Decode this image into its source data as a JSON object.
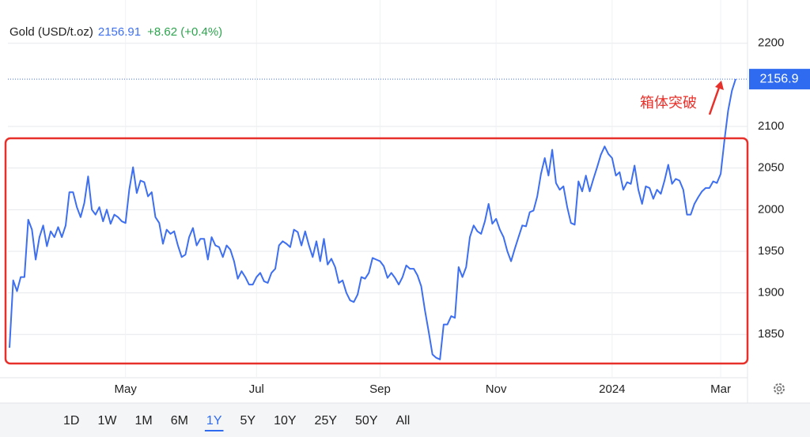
{
  "chart_data": {
    "type": "line",
    "series": [
      {
        "name": "Gold (USD/t.oz)",
        "color": "#3d6ff0",
        "values": [
          1834,
          1915,
          1902,
          1919,
          1919,
          1988,
          1976,
          1940,
          1967,
          1981,
          1956,
          1974,
          1967,
          1979,
          1967,
          1981,
          2021,
          2021,
          2003,
          1991,
          2008,
          2040,
          2000,
          1994,
          2003,
          1986,
          2000,
          1983,
          1994,
          1991,
          1986,
          1984,
          2024,
          2051,
          2020,
          2035,
          2033,
          2016,
          2021,
          1991,
          1984,
          1959,
          1976,
          1971,
          1974,
          1957,
          1943,
          1946,
          1967,
          1978,
          1957,
          1965,
          1965,
          1940,
          1967,
          1957,
          1955,
          1943,
          1957,
          1952,
          1938,
          1917,
          1926,
          1919,
          1910,
          1910,
          1919,
          1924,
          1914,
          1912,
          1924,
          1929,
          1957,
          1962,
          1959,
          1955,
          1976,
          1973,
          1957,
          1974,
          1957,
          1943,
          1962,
          1938,
          1965,
          1934,
          1941,
          1931,
          1912,
          1915,
          1900,
          1891,
          1889,
          1898,
          1919,
          1917,
          1924,
          1942,
          1940,
          1938,
          1932,
          1918,
          1924,
          1918,
          1910,
          1919,
          1933,
          1929,
          1929,
          1921,
          1908,
          1879,
          1853,
          1826,
          1822,
          1820,
          1862,
          1862,
          1872,
          1870,
          1931,
          1919,
          1931,
          1967,
          1981,
          1974,
          1971,
          1986,
          2007,
          1983,
          1989,
          1976,
          1967,
          1950,
          1938,
          1953,
          1967,
          1981,
          1980,
          1997,
          1999,
          2016,
          2043,
          2062,
          2041,
          2072,
          2032,
          2024,
          2028,
          2003,
          1984,
          1982,
          2034,
          2022,
          2041,
          2022,
          2037,
          2051,
          2066,
          2076,
          2067,
          2062,
          2041,
          2045,
          2024,
          2033,
          2031,
          2053,
          2024,
          2007,
          2028,
          2026,
          2013,
          2024,
          2019,
          2035,
          2054,
          2031,
          2037,
          2035,
          2024,
          1994,
          1994,
          2007,
          2015,
          2022,
          2026,
          2026,
          2034,
          2032,
          2043,
          2083,
          2119,
          2143,
          2157
        ]
      }
    ],
    "price": 2156.91,
    "change": "+8.62 (+0.4%)",
    "last_price": 2156.9,
    "annotation": "箱体突破",
    "ylim": [
      1798,
      2252
    ],
    "yticks": [
      1850,
      1900,
      1950,
      2000,
      2050,
      2100,
      2200
    ],
    "xlim": [
      0,
      194
    ],
    "xticks": [
      {
        "value": 31,
        "label": "May"
      },
      {
        "value": 66,
        "label": "Jul"
      },
      {
        "value": 99,
        "label": "Sep"
      },
      {
        "value": 130,
        "label": "Nov"
      },
      {
        "value": 161,
        "label": "2024"
      },
      {
        "value": 190,
        "label": "Mar"
      }
    ],
    "grid": true,
    "range_buttons": [
      "1D",
      "1W",
      "1M",
      "6M",
      "1Y",
      "5Y",
      "10Y",
      "25Y",
      "50Y",
      "All"
    ],
    "selected_range": 4
  }
}
